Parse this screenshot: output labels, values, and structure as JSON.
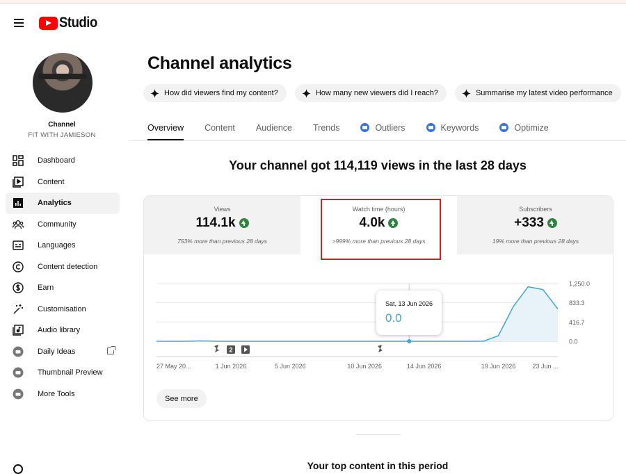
{
  "header": {
    "logo_text": "Studio",
    "menu_icon": "hamburger-menu-icon"
  },
  "channel": {
    "title": "Channel",
    "name": "FIT WITH JAMIESON"
  },
  "sidebar": {
    "items": [
      {
        "label": "Dashboard",
        "icon": "dashboard-icon"
      },
      {
        "label": "Content",
        "icon": "content-icon"
      },
      {
        "label": "Analytics",
        "icon": "analytics-icon",
        "active": true
      },
      {
        "label": "Community",
        "icon": "community-icon"
      },
      {
        "label": "Languages",
        "icon": "languages-icon"
      },
      {
        "label": "Content detection",
        "icon": "copyright-icon"
      },
      {
        "label": "Earn",
        "icon": "dollar-icon"
      },
      {
        "label": "Customisation",
        "icon": "magic-wand-icon"
      },
      {
        "label": "Audio library",
        "icon": "audio-library-icon"
      },
      {
        "label": "Daily Ideas",
        "icon": "extension-icon",
        "external": true
      },
      {
        "label": "Thumbnail Preview",
        "icon": "extension-icon"
      },
      {
        "label": "More Tools",
        "icon": "extension-icon"
      }
    ]
  },
  "main": {
    "title": "Channel analytics",
    "chips": [
      "How did viewers find my content?",
      "How many new viewers did I reach?",
      "Summarise my latest video performance"
    ],
    "tabs": [
      {
        "label": "Overview",
        "active": true
      },
      {
        "label": "Content"
      },
      {
        "label": "Audience"
      },
      {
        "label": "Trends"
      },
      {
        "label": "Outliers",
        "ext": true
      },
      {
        "label": "Keywords",
        "ext": true
      },
      {
        "label": "Optimize",
        "ext": true
      }
    ],
    "headline": "Your channel got 114,119 views in the last 28 days",
    "metrics": [
      {
        "label": "Views",
        "value": "114.1k",
        "sub": "753% more than previous 28 days"
      },
      {
        "label": "Watch time (hours)",
        "value": "4.0k",
        "sub": ">999% more than previous 28 days",
        "selected": true
      },
      {
        "label": "Subscribers",
        "value": "+333",
        "sub": "19% more than previous 28 days"
      }
    ],
    "tooltip": {
      "date": "Sat, 13 Jun 2026",
      "value": "0.0"
    },
    "see_more": "See more",
    "bottom_title": "Your top content in this period"
  },
  "colors": {
    "accent": "#3ea6d8",
    "brand": "#ff0000",
    "positive": "#2e8540",
    "highlight_box": "#d81f1f"
  },
  "chart_data": {
    "type": "area",
    "x": [
      "27 May",
      "28 May",
      "29 May",
      "30 May",
      "31 May",
      "1 Jun",
      "2 Jun",
      "3 Jun",
      "4 Jun",
      "5 Jun",
      "6 Jun",
      "7 Jun",
      "8 Jun",
      "9 Jun",
      "10 Jun",
      "11 Jun",
      "12 Jun",
      "13 Jun",
      "14 Jun",
      "15 Jun",
      "16 Jun",
      "17 Jun",
      "18 Jun",
      "19 Jun",
      "20 Jun",
      "21 Jun",
      "22 Jun",
      "23 Jun"
    ],
    "values": [
      0,
      0,
      0,
      8,
      0,
      0,
      0,
      0,
      0,
      0,
      0,
      0,
      0,
      0,
      0,
      0,
      0,
      0,
      0,
      0,
      0,
      0,
      0,
      120,
      750,
      1180,
      1120,
      700
    ],
    "tick_labels": [
      "27 May 20...",
      "1 Jun 2026",
      "5 Jun 2026",
      "10 Jun 2026",
      "14 Jun 2026",
      "19 Jun 2026",
      "23 Jun ..."
    ],
    "y_ticks": [
      "1,250.0",
      "833.3",
      "416.7",
      "0.0"
    ],
    "ylim": [
      0,
      1250
    ],
    "grid": true,
    "markers": [
      "shorts-icon",
      "2",
      "video-icon",
      "shorts-icon"
    ]
  }
}
